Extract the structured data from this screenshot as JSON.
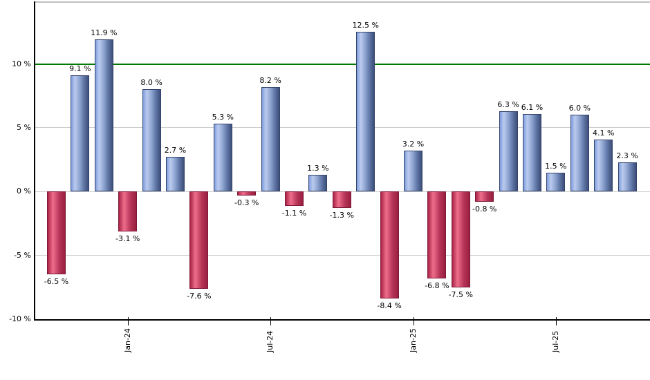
{
  "chart_data": {
    "type": "bar",
    "title": "",
    "xlabel": "",
    "ylabel": "",
    "values": [
      -6.5,
      9.1,
      11.9,
      -3.1,
      8.0,
      2.7,
      -7.6,
      5.3,
      -0.3,
      8.2,
      -1.1,
      1.3,
      -1.3,
      12.5,
      -8.4,
      3.2,
      -6.8,
      -7.5,
      -0.8,
      6.3,
      6.1,
      1.5,
      6.0,
      4.1,
      2.3
    ],
    "value_label_suffix": " %",
    "xticks": [
      {
        "index": 3,
        "label": "Jan-24"
      },
      {
        "index": 9,
        "label": "Jul-24"
      },
      {
        "index": 15,
        "label": "Jan-25"
      },
      {
        "index": 21,
        "label": "Jul-25"
      }
    ],
    "yticks": [
      {
        "value": 10,
        "label": "10 %"
      },
      {
        "value": 5,
        "label": "5 %"
      },
      {
        "value": 0,
        "label": "0 %"
      },
      {
        "value": -5,
        "label": "-5 %"
      },
      {
        "value": -10,
        "label": "-10 %"
      }
    ],
    "gridline_values": [
      5,
      0,
      -5
    ],
    "ylim": [
      -10,
      14.9
    ],
    "grid": true,
    "legend": "none",
    "threshold_line": {
      "value": 10,
      "color": "#007a00"
    },
    "colors": {
      "positive_bar_gradient": [
        "#7e9dde",
        "#bccbee",
        "#8ba2cf",
        "#5d74a4",
        "#3d4e78"
      ],
      "positive_bar_border": "#33436b",
      "negative_bar_gradient": [
        "#aa2346",
        "#ee6e8c",
        "#d14e70",
        "#b23254",
        "#9a1f40"
      ],
      "negative_bar_border": "#7d1838",
      "grid": "#cccccc",
      "axis": "#000000",
      "frame_top": "#c0c0c0",
      "text": "#000000",
      "background": "#ffffff"
    }
  }
}
